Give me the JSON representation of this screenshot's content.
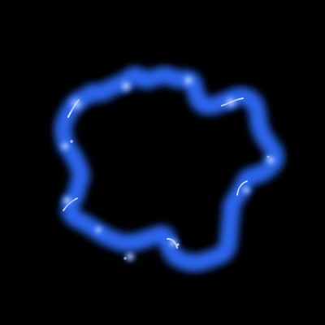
{
  "scene": {
    "subject": "electric-ring",
    "background_color": "#000000",
    "glow_color": "#3f7dff",
    "core_color": "#ffffff",
    "mid_color": "#aecdff"
  }
}
